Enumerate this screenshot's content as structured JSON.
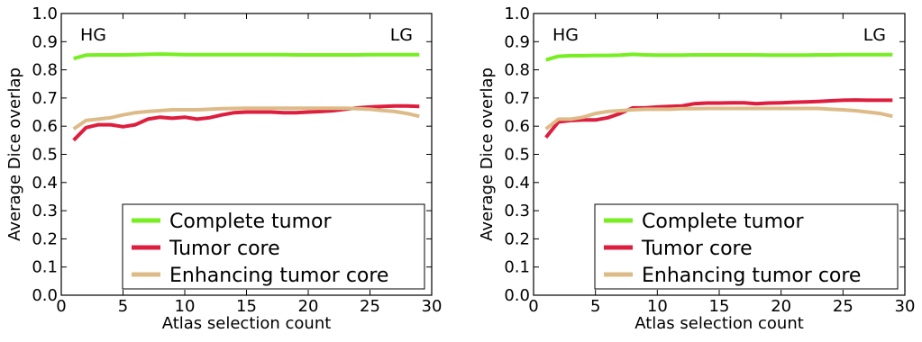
{
  "chart_data": [
    {
      "type": "line",
      "xlabel": "Atlas selection count",
      "ylabel": "Average Dice overlap",
      "xlim": [
        0,
        30
      ],
      "ylim": [
        0.0,
        1.0
      ],
      "xticks": [
        "0",
        "5",
        "10",
        "15",
        "20",
        "25",
        "30"
      ],
      "yticks": [
        "0.0",
        "0.1",
        "0.2",
        "0.3",
        "0.4",
        "0.5",
        "0.6",
        "0.7",
        "0.8",
        "0.9",
        "1.0"
      ],
      "annotations": {
        "left": "HG",
        "right": "LG"
      },
      "grid": false,
      "legend_position": "lower-right",
      "x": [
        1,
        2,
        3,
        4,
        5,
        6,
        7,
        8,
        9,
        10,
        11,
        12,
        13,
        14,
        15,
        16,
        17,
        18,
        19,
        20,
        21,
        22,
        23,
        24,
        25,
        26,
        27,
        28,
        29
      ],
      "series": [
        {
          "name": "Complete tumor",
          "color": "#77ee22",
          "values": [
            0.84,
            0.852,
            0.853,
            0.853,
            0.853,
            0.854,
            0.855,
            0.856,
            0.855,
            0.854,
            0.854,
            0.854,
            0.854,
            0.854,
            0.854,
            0.854,
            0.854,
            0.854,
            0.853,
            0.853,
            0.853,
            0.853,
            0.853,
            0.853,
            0.854,
            0.854,
            0.854,
            0.854,
            0.854
          ]
        },
        {
          "name": "Tumor core",
          "color": "#dd1e3e",
          "values": [
            0.55,
            0.595,
            0.605,
            0.605,
            0.598,
            0.605,
            0.625,
            0.632,
            0.628,
            0.632,
            0.625,
            0.63,
            0.64,
            0.648,
            0.65,
            0.65,
            0.65,
            0.648,
            0.648,
            0.65,
            0.652,
            0.655,
            0.66,
            0.665,
            0.668,
            0.67,
            0.672,
            0.672,
            0.67
          ]
        },
        {
          "name": "Enhancing tumor core",
          "color": "#ddbb88",
          "values": [
            0.59,
            0.62,
            0.625,
            0.63,
            0.64,
            0.648,
            0.652,
            0.655,
            0.658,
            0.658,
            0.658,
            0.66,
            0.662,
            0.663,
            0.664,
            0.664,
            0.664,
            0.664,
            0.664,
            0.664,
            0.664,
            0.664,
            0.664,
            0.662,
            0.66,
            0.656,
            0.652,
            0.645,
            0.635
          ]
        }
      ]
    },
    {
      "type": "line",
      "xlabel": "Atlas selection count",
      "ylabel": "Average Dice overlap",
      "xlim": [
        0,
        30
      ],
      "ylim": [
        0.0,
        1.0
      ],
      "xticks": [
        "0",
        "5",
        "10",
        "15",
        "20",
        "25",
        "30"
      ],
      "yticks": [
        "0.0",
        "0.1",
        "0.2",
        "0.3",
        "0.4",
        "0.5",
        "0.6",
        "0.7",
        "0.8",
        "0.9",
        "1.0"
      ],
      "annotations": {
        "left": "HG",
        "right": "LG"
      },
      "grid": false,
      "legend_position": "lower-right",
      "x": [
        1,
        2,
        3,
        4,
        5,
        6,
        7,
        8,
        9,
        10,
        11,
        12,
        13,
        14,
        15,
        16,
        17,
        18,
        19,
        20,
        21,
        22,
        23,
        24,
        25,
        26,
        27,
        28,
        29
      ],
      "series": [
        {
          "name": "Complete tumor",
          "color": "#77ee22",
          "values": [
            0.835,
            0.848,
            0.85,
            0.85,
            0.851,
            0.851,
            0.852,
            0.855,
            0.853,
            0.852,
            0.852,
            0.852,
            0.853,
            0.853,
            0.853,
            0.853,
            0.853,
            0.853,
            0.852,
            0.852,
            0.852,
            0.852,
            0.853,
            0.853,
            0.854,
            0.854,
            0.854,
            0.854,
            0.854
          ]
        },
        {
          "name": "Tumor core",
          "color": "#dd1e3e",
          "values": [
            0.56,
            0.615,
            0.62,
            0.622,
            0.622,
            0.63,
            0.645,
            0.665,
            0.665,
            0.668,
            0.67,
            0.672,
            0.68,
            0.682,
            0.682,
            0.683,
            0.683,
            0.68,
            0.682,
            0.683,
            0.685,
            0.686,
            0.688,
            0.69,
            0.692,
            0.693,
            0.692,
            0.692,
            0.692
          ]
        },
        {
          "name": "Enhancing tumor core",
          "color": "#ddbb88",
          "values": [
            0.59,
            0.625,
            0.625,
            0.632,
            0.645,
            0.652,
            0.655,
            0.658,
            0.66,
            0.66,
            0.66,
            0.662,
            0.662,
            0.663,
            0.663,
            0.663,
            0.663,
            0.663,
            0.663,
            0.663,
            0.663,
            0.663,
            0.663,
            0.66,
            0.658,
            0.655,
            0.65,
            0.645,
            0.635
          ]
        }
      ]
    }
  ]
}
